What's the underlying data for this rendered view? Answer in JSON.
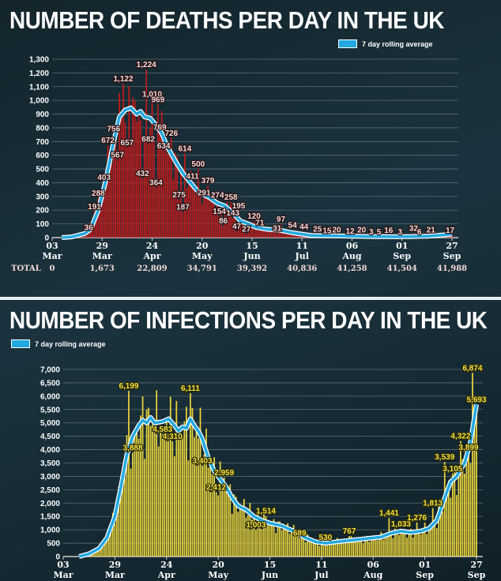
{
  "titles": {
    "deaths": "NUMBER OF DEATHS PER DAY IN THE UK",
    "infections": "NUMBER OF INFECTIONS PER DAY IN THE UK"
  },
  "legend_label": "7 day rolling average",
  "colors": {
    "deaths_bar": "#c41a1a",
    "infections_bar": "#e8d23a",
    "rolling_line": "#23a8e0",
    "background": "#15272f"
  },
  "chart_data": [
    {
      "type": "bar",
      "title": "NUMBER OF DEATHS PER DAY IN THE UK",
      "x_start": "2020-03-03",
      "x_ticks": [
        {
          "day": "03",
          "month": "Mar",
          "total": "0"
        },
        {
          "day": "29",
          "month": "Mar",
          "total": "1,673"
        },
        {
          "day": "24",
          "month": "Apr",
          "total": "22,809"
        },
        {
          "day": "20",
          "month": "May",
          "total": "34,791"
        },
        {
          "day": "15",
          "month": "Jun",
          "total": "39,392"
        },
        {
          "day": "11",
          "month": "Jul",
          "total": "40,836"
        },
        {
          "day": "06",
          "month": "Aug",
          "total": "41,258"
        },
        {
          "day": "01",
          "month": "Sep",
          "total": "41,504"
        },
        {
          "day": "27",
          "month": "Sep",
          "total": "41,988"
        }
      ],
      "total_label": "TOTAL",
      "ylim": [
        0,
        1300
      ],
      "y_ticks": [
        "0",
        "100",
        "200",
        "300",
        "400",
        "500",
        "600",
        "700",
        "800",
        "900",
        "1,000",
        "1,100",
        "1,200",
        "1,300"
      ],
      "grid": true,
      "legend": "top-right",
      "labeled_points": [
        {
          "date": "2020-03-22",
          "value": 36,
          "label": "36"
        },
        {
          "date": "2020-03-25",
          "value": 191,
          "label": "191"
        },
        {
          "date": "2020-03-27",
          "value": 288,
          "label": "288"
        },
        {
          "date": "2020-03-30",
          "value": 403,
          "label": "403"
        },
        {
          "date": "2020-04-01",
          "value": 672,
          "label": "672"
        },
        {
          "date": "2020-04-04",
          "value": 756,
          "label": "756"
        },
        {
          "date": "2020-04-06",
          "value": 567,
          "label": "567"
        },
        {
          "date": "2020-04-09",
          "value": 1122,
          "label": "1,122"
        },
        {
          "date": "2020-04-11",
          "value": 657,
          "label": "657"
        },
        {
          "date": "2020-04-19",
          "value": 432,
          "label": "432"
        },
        {
          "date": "2020-04-21",
          "value": 1224,
          "label": "1,224"
        },
        {
          "date": "2020-04-22",
          "value": 682,
          "label": "682"
        },
        {
          "date": "2020-04-24",
          "value": 1010,
          "label": "1,010"
        },
        {
          "date": "2020-04-26",
          "value": 364,
          "label": "364"
        },
        {
          "date": "2020-04-27",
          "value": 969,
          "label": "969"
        },
        {
          "date": "2020-04-28",
          "value": 769,
          "label": "769"
        },
        {
          "date": "2020-04-30",
          "value": 634,
          "label": "634"
        },
        {
          "date": "2020-05-04",
          "value": 726,
          "label": "726"
        },
        {
          "date": "2020-05-08",
          "value": 275,
          "label": "275"
        },
        {
          "date": "2020-05-10",
          "value": 187,
          "label": "187"
        },
        {
          "date": "2020-05-11",
          "value": 614,
          "label": "614"
        },
        {
          "date": "2020-05-15",
          "value": 411,
          "label": "411"
        },
        {
          "date": "2020-05-18",
          "value": 500,
          "label": "500"
        },
        {
          "date": "2020-05-21",
          "value": 291,
          "label": "291"
        },
        {
          "date": "2020-05-23",
          "value": 379,
          "label": "379"
        },
        {
          "date": "2020-05-28",
          "value": 274,
          "label": "274"
        },
        {
          "date": "2020-05-29",
          "value": 154,
          "label": "154"
        },
        {
          "date": "2020-05-31",
          "value": 86,
          "label": "86"
        },
        {
          "date": "2020-06-04",
          "value": 258,
          "label": "258"
        },
        {
          "date": "2020-06-05",
          "value": 143,
          "label": "143"
        },
        {
          "date": "2020-06-07",
          "value": 47,
          "label": "47"
        },
        {
          "date": "2020-06-08",
          "value": 195,
          "label": "195"
        },
        {
          "date": "2020-06-12",
          "value": 27,
          "label": "27"
        },
        {
          "date": "2020-06-16",
          "value": 120,
          "label": "120"
        },
        {
          "date": "2020-06-19",
          "value": 71,
          "label": "71"
        },
        {
          "date": "2020-06-28",
          "value": 31,
          "label": "31"
        },
        {
          "date": "2020-06-30",
          "value": 97,
          "label": "97"
        },
        {
          "date": "2020-07-06",
          "value": 54,
          "label": "54"
        },
        {
          "date": "2020-07-12",
          "value": 44,
          "label": "44"
        },
        {
          "date": "2020-07-19",
          "value": 25,
          "label": "25"
        },
        {
          "date": "2020-07-24",
          "value": 15,
          "label": "15"
        },
        {
          "date": "2020-07-29",
          "value": 20,
          "label": "20"
        },
        {
          "date": "2020-08-05",
          "value": 12,
          "label": "12"
        },
        {
          "date": "2020-08-11",
          "value": 20,
          "label": "20"
        },
        {
          "date": "2020-08-16",
          "value": 3,
          "label": "3"
        },
        {
          "date": "2020-08-20",
          "value": 5,
          "label": "5"
        },
        {
          "date": "2020-08-25",
          "value": 16,
          "label": "16"
        },
        {
          "date": "2020-08-31",
          "value": 3,
          "label": "3"
        },
        {
          "date": "2020-09-07",
          "value": 32,
          "label": "32"
        },
        {
          "date": "2020-09-10",
          "value": 6,
          "label": "6"
        },
        {
          "date": "2020-09-16",
          "value": 21,
          "label": "21"
        },
        {
          "date": "2020-09-26",
          "value": 17,
          "label": "17"
        }
      ],
      "rolling_average": [
        [
          "2020-03-08",
          0
        ],
        [
          "2020-03-13",
          5
        ],
        [
          "2020-03-20",
          30
        ],
        [
          "2020-03-23",
          60
        ],
        [
          "2020-03-27",
          200
        ],
        [
          "2020-03-31",
          420
        ],
        [
          "2020-04-04",
          700
        ],
        [
          "2020-04-07",
          880
        ],
        [
          "2020-04-10",
          930
        ],
        [
          "2020-04-13",
          945
        ],
        [
          "2020-04-16",
          900
        ],
        [
          "2020-04-18",
          920
        ],
        [
          "2020-04-20",
          880
        ],
        [
          "2020-04-23",
          870
        ],
        [
          "2020-04-26",
          820
        ],
        [
          "2020-04-29",
          760
        ],
        [
          "2020-05-02",
          660
        ],
        [
          "2020-05-06",
          560
        ],
        [
          "2020-05-10",
          470
        ],
        [
          "2020-05-14",
          400
        ],
        [
          "2020-05-17",
          350
        ],
        [
          "2020-05-20",
          320
        ],
        [
          "2020-05-24",
          290
        ],
        [
          "2020-05-28",
          250
        ],
        [
          "2020-06-01",
          230
        ],
        [
          "2020-06-05",
          180
        ],
        [
          "2020-06-09",
          120
        ],
        [
          "2020-06-13",
          100
        ],
        [
          "2020-06-17",
          75
        ],
        [
          "2020-06-23",
          60
        ],
        [
          "2020-06-29",
          55
        ],
        [
          "2020-07-06",
          35
        ],
        [
          "2020-07-16",
          15
        ],
        [
          "2020-07-31",
          12
        ],
        [
          "2020-08-15",
          8
        ],
        [
          "2020-08-30",
          6
        ],
        [
          "2020-09-14",
          10
        ],
        [
          "2020-09-27",
          25
        ]
      ]
    },
    {
      "type": "bar",
      "title": "NUMBER OF INFECTIONS PER DAY IN THE UK",
      "x_start": "2020-03-03",
      "x_ticks": [
        {
          "day": "03",
          "month": "Mar"
        },
        {
          "day": "29",
          "month": "Mar"
        },
        {
          "day": "24",
          "month": "Apr"
        },
        {
          "day": "20",
          "month": "May"
        },
        {
          "day": "15",
          "month": "Jun"
        },
        {
          "day": "11",
          "month": "Jul"
        },
        {
          "day": "06",
          "month": "Aug"
        },
        {
          "day": "01",
          "month": "Sep"
        },
        {
          "day": "27",
          "month": "Sep"
        }
      ],
      "ylim": [
        0,
        7000
      ],
      "y_ticks": [
        "0",
        "500",
        "1,000",
        "1,500",
        "2,000",
        "2,500",
        "3,000",
        "3,500",
        "4,000",
        "4,500",
        "5,000",
        "5,500",
        "6,000",
        "6,500",
        "7,000"
      ],
      "grid": true,
      "legend": "top-left",
      "labeled_points": [
        {
          "date": "2020-04-05",
          "value": 6199,
          "label": "6,199"
        },
        {
          "date": "2020-04-07",
          "value": 3888,
          "label": "3,888"
        },
        {
          "date": "2020-04-22",
          "value": 4583,
          "label": "4,583"
        },
        {
          "date": "2020-04-27",
          "value": 4310,
          "label": "4,310"
        },
        {
          "date": "2020-05-06",
          "value": 6111,
          "label": "6,111"
        },
        {
          "date": "2020-05-12",
          "value": 3403,
          "label": "3,403"
        },
        {
          "date": "2020-05-19",
          "value": 2412,
          "label": "2,412"
        },
        {
          "date": "2020-05-23",
          "value": 2959,
          "label": "2,959"
        },
        {
          "date": "2020-06-08",
          "value": 1003,
          "label": "1,003"
        },
        {
          "date": "2020-06-13",
          "value": 1514,
          "label": "1,514"
        },
        {
          "date": "2020-06-30",
          "value": 689,
          "label": "689"
        },
        {
          "date": "2020-07-13",
          "value": 530,
          "label": "530"
        },
        {
          "date": "2020-07-25",
          "value": 767,
          "label": "767"
        },
        {
          "date": "2020-08-14",
          "value": 1441,
          "label": "1,441"
        },
        {
          "date": "2020-08-20",
          "value": 1033,
          "label": "1,033"
        },
        {
          "date": "2020-08-28",
          "value": 1276,
          "label": "1,276"
        },
        {
          "date": "2020-09-05",
          "value": 1813,
          "label": "1,813"
        },
        {
          "date": "2020-09-11",
          "value": 3539,
          "label": "3,539"
        },
        {
          "date": "2020-09-15",
          "value": 3105,
          "label": "3,105"
        },
        {
          "date": "2020-09-19",
          "value": 4322,
          "label": "4,322"
        },
        {
          "date": "2020-09-23",
          "value": 3899,
          "label": "3,899"
        },
        {
          "date": "2020-09-25",
          "value": 6874,
          "label": "6,874"
        },
        {
          "date": "2020-09-27",
          "value": 5693,
          "label": "5,693"
        }
      ],
      "rolling_average": [
        [
          "2020-03-11",
          0
        ],
        [
          "2020-03-16",
          100
        ],
        [
          "2020-03-21",
          300
        ],
        [
          "2020-03-25",
          700
        ],
        [
          "2020-03-29",
          1500
        ],
        [
          "2020-04-01",
          2600
        ],
        [
          "2020-04-04",
          3800
        ],
        [
          "2020-04-07",
          4500
        ],
        [
          "2020-04-10",
          4900
        ],
        [
          "2020-04-12",
          5100
        ],
        [
          "2020-04-14",
          5000
        ],
        [
          "2020-04-16",
          5200
        ],
        [
          "2020-04-18",
          5000
        ],
        [
          "2020-04-22",
          5050
        ],
        [
          "2020-04-25",
          5150
        ],
        [
          "2020-04-28",
          4900
        ],
        [
          "2020-04-30",
          4700
        ],
        [
          "2020-05-02",
          4850
        ],
        [
          "2020-05-04",
          4800
        ],
        [
          "2020-05-06",
          5150
        ],
        [
          "2020-05-08",
          4900
        ],
        [
          "2020-05-10",
          4700
        ],
        [
          "2020-05-12",
          4400
        ],
        [
          "2020-05-15",
          3700
        ],
        [
          "2020-05-18",
          3200
        ],
        [
          "2020-05-21",
          2900
        ],
        [
          "2020-05-24",
          2600
        ],
        [
          "2020-05-27",
          2200
        ],
        [
          "2020-05-30",
          1900
        ],
        [
          "2020-06-03",
          1750
        ],
        [
          "2020-06-07",
          1500
        ],
        [
          "2020-06-11",
          1350
        ],
        [
          "2020-06-15",
          1250
        ],
        [
          "2020-06-21",
          1150
        ],
        [
          "2020-06-27",
          950
        ],
        [
          "2020-07-03",
          700
        ],
        [
          "2020-07-08",
          550
        ],
        [
          "2020-07-13",
          500
        ],
        [
          "2020-07-21",
          570
        ],
        [
          "2020-07-31",
          650
        ],
        [
          "2020-08-10",
          730
        ],
        [
          "2020-08-15",
          870
        ],
        [
          "2020-08-20",
          950
        ],
        [
          "2020-08-25",
          900
        ],
        [
          "2020-08-30",
          950
        ],
        [
          "2020-09-03",
          1050
        ],
        [
          "2020-09-07",
          1350
        ],
        [
          "2020-09-11",
          2200
        ],
        [
          "2020-09-14",
          2800
        ],
        [
          "2020-09-17",
          3000
        ],
        [
          "2020-09-21",
          3500
        ],
        [
          "2020-09-24",
          4300
        ],
        [
          "2020-09-27",
          5693
        ]
      ]
    }
  ]
}
